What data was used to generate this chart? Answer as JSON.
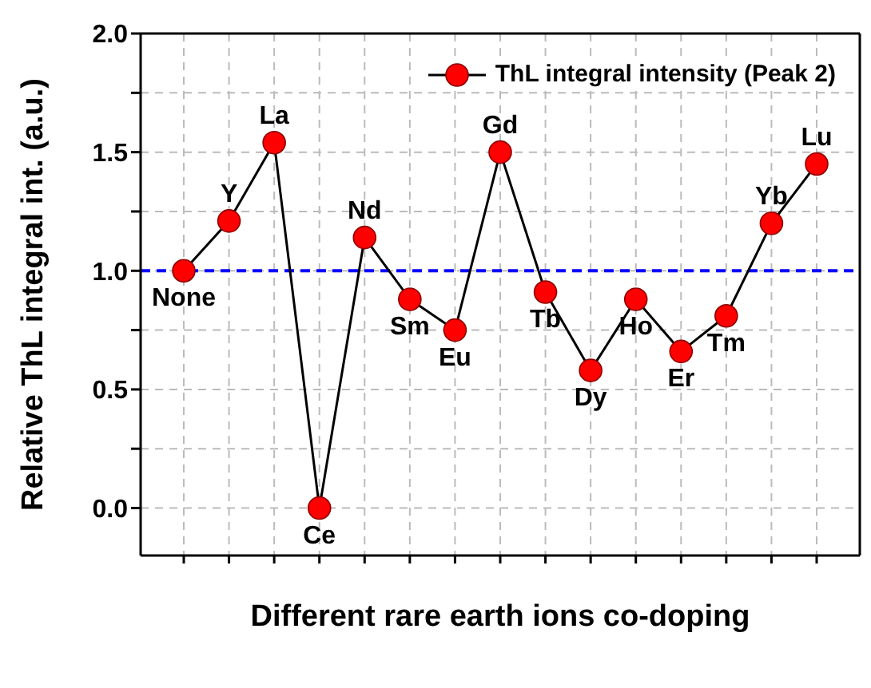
{
  "chart_data": {
    "type": "line",
    "xlabel": "Different rare earth ions co-doping",
    "ylabel": "Relative ThL integral int. (a.u.)",
    "categories": [
      null,
      null,
      null,
      null,
      null,
      null,
      null,
      null,
      null,
      null,
      null,
      null,
      null,
      null,
      null
    ],
    "series": [
      {
        "name": "ThL integral intensity (Peak 2)",
        "color": "#ff0000",
        "values": [
          1.0,
          1.21,
          1.54,
          0.0,
          1.14,
          0.88,
          0.75,
          1.5,
          0.91,
          0.58,
          0.88,
          0.66,
          0.81,
          1.2,
          1.45
        ]
      }
    ],
    "annotations": [
      {
        "text": "None",
        "y": 1.0
      },
      {
        "text": "Y",
        "y": 1.21
      },
      {
        "text": "La",
        "y": 1.54
      },
      {
        "text": "Ce",
        "y": 0.0
      },
      {
        "text": "Nd",
        "y": 1.14
      },
      {
        "text": "Sm",
        "y": 0.88
      },
      {
        "text": "Eu",
        "y": 0.75
      },
      {
        "text": "Gd",
        "y": 1.5
      },
      {
        "text": "Tb",
        "y": 0.91
      },
      {
        "text": "Dy",
        "y": 0.58
      },
      {
        "text": "Ho",
        "y": 0.88
      },
      {
        "text": "Er",
        "y": 0.66
      },
      {
        "text": "Tm",
        "y": 0.81
      },
      {
        "text": "Yb",
        "y": 1.2
      },
      {
        "text": "Lu",
        "y": 1.45
      }
    ],
    "ref_lines": [
      {
        "axis": "y",
        "value": 1.0,
        "color": "#0000ff",
        "line_style": "dashed"
      }
    ],
    "ylim": [
      -0.2,
      2.0
    ],
    "yticks": [
      {
        "value": 0,
        "label": "0.0"
      },
      {
        "value": 0.25,
        "label": null
      },
      0.5,
      {
        "value": 0.75,
        "label": null
      },
      {
        "value": 1,
        "label": "1.0"
      },
      {
        "value": 1.25,
        "label": null
      },
      1.5,
      {
        "value": 1.75,
        "label": null
      },
      {
        "value": 2,
        "label": "2.0"
      }
    ],
    "grid": true,
    "legend": "top right",
    "marker": "circle",
    "line_style": "solid",
    "tick_labels": "y"
  }
}
